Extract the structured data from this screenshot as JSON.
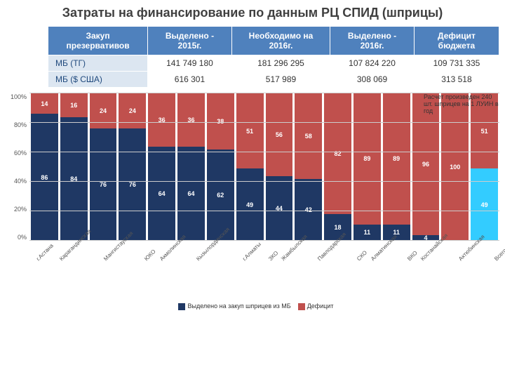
{
  "title": "Затраты на финансирование по данным РЦ СПИД (шприцы)",
  "table": {
    "headers": [
      "Закуп презервативов",
      "Выделено - 2015г.",
      "Необходимо на 2016г.",
      "Выделено - 2016г.",
      "Дефицит бюджета"
    ],
    "rows": [
      {
        "label": "МБ (ТГ)",
        "cells": [
          "141 749 180",
          "181 296 295",
          "107 824 220",
          "109 731 335"
        ]
      },
      {
        "label": "МБ ($ США)",
        "cells": [
          "616 301",
          "517 989",
          "308 069",
          "313 518"
        ]
      }
    ]
  },
  "chart": {
    "type": "stacked-bar-100",
    "ylabels": [
      "0%",
      "20%",
      "40%",
      "60%",
      "80%",
      "100%"
    ],
    "yticks": [
      0,
      20,
      40,
      60,
      80,
      100
    ],
    "grid_color": "#cccccc",
    "categories": [
      "г.Астана",
      "Карагандинская",
      "Мангистауская",
      "ЮКО",
      "Акмолинская",
      "Кызылординская",
      "г.Алматы",
      "ЗКО",
      "Жамбылская",
      "Павлодарская",
      "СКО",
      "Алматинская",
      "ВКО",
      "Костанайская",
      "Актюбинская",
      "Всего по РК"
    ],
    "series": [
      {
        "name": "Выделено на закуп шприцев из МБ",
        "color": "#1f3864",
        "values": [
          86,
          84,
          76,
          76,
          64,
          64,
          62,
          49,
          44,
          42,
          18,
          11,
          11,
          4,
          0,
          49
        ]
      },
      {
        "name": "Дефицит",
        "color": "#c0504d",
        "values": [
          14,
          16,
          24,
          24,
          36,
          36,
          38,
          51,
          56,
          58,
          82,
          89,
          89,
          96,
          100,
          51
        ]
      }
    ],
    "special_last_bottom_color": "#33ccff",
    "note": "Расчет произведен 240 шт. шприцев на 1 ЛУИН в год",
    "legend": [
      "Выделено на закуп шприцев из МБ",
      "Дефицит"
    ]
  }
}
